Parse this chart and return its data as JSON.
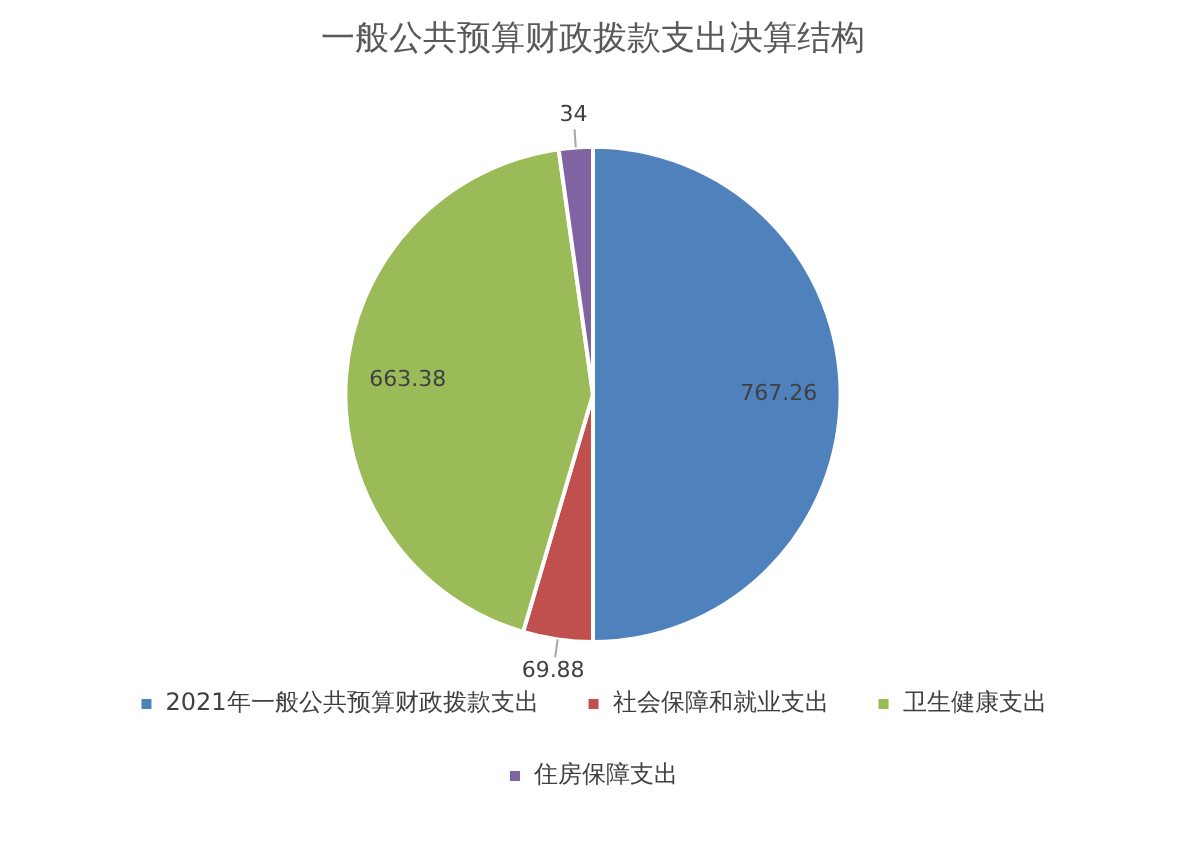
{
  "chart_data": {
    "type": "pie",
    "title": "一般公共预算财政拨款支出决算结构",
    "categories": [
      "2021年一般公共预算财政拨款支出",
      "社会保障和就业支出",
      "卫生健康支出",
      "住房保障支出"
    ],
    "values": [
      767.26,
      69.88,
      663.38,
      34
    ],
    "colors": [
      "#4f81bd",
      "#c0504d",
      "#9bbb59",
      "#8064a2"
    ],
    "data_labels": true,
    "legend": "bottom"
  }
}
